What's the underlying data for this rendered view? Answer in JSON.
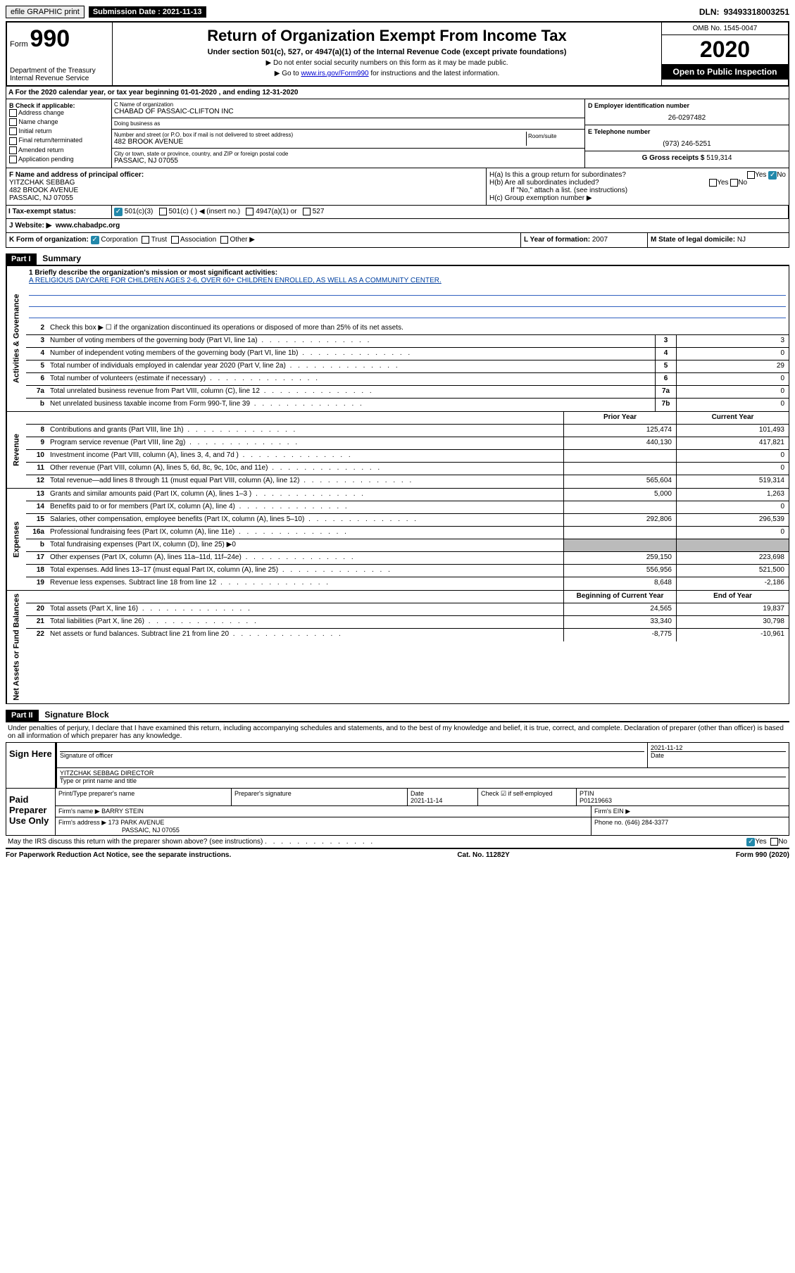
{
  "topbar": {
    "efile": "efile GRAPHIC print",
    "submission_label": "Submission Date : 2021-11-13",
    "dln_label": "DLN:",
    "dln": "93493318003251"
  },
  "header": {
    "form_label": "Form",
    "form_num": "990",
    "dept": "Department of the Treasury Internal Revenue Service",
    "title": "Return of Organization Exempt From Income Tax",
    "subtitle": "Under section 501(c), 527, or 4947(a)(1) of the Internal Revenue Code (except private foundations)",
    "line1": "▶ Do not enter social security numbers on this form as it may be made public.",
    "line2_pre": "▶ Go to ",
    "line2_link": "www.irs.gov/Form990",
    "line2_post": " for instructions and the latest information.",
    "omb": "OMB No. 1545-0047",
    "year": "2020",
    "inspection": "Open to Public Inspection"
  },
  "section_a": "A For the 2020 calendar year, or tax year beginning 01-01-2020   , and ending 12-31-2020",
  "box_b": {
    "title": "B Check if applicable:",
    "items": [
      "Address change",
      "Name change",
      "Initial return",
      "Final return/terminated",
      "Amended return",
      "Application pending"
    ]
  },
  "box_c": {
    "lbl_name": "C Name of organization",
    "name": "CHABAD OF PASSAIC-CLIFTON INC",
    "dba_lbl": "Doing business as",
    "street_lbl": "Number and street (or P.O. box if mail is not delivered to street address)",
    "street": "482 BROOK AVENUE",
    "room_lbl": "Room/suite",
    "city_lbl": "City or town, state or province, country, and ZIP or foreign postal code",
    "city": "PASSAIC, NJ  07055"
  },
  "box_d": {
    "lbl": "D Employer identification number",
    "val": "26-0297482"
  },
  "box_e": {
    "lbl": "E Telephone number",
    "val": "(973) 246-5251"
  },
  "box_g": {
    "lbl": "G Gross receipts $",
    "val": "519,314"
  },
  "box_f": {
    "lbl": "F Name and address of principal officer:",
    "name": "YITZCHAK SEBBAG",
    "addr1": "482 BROOK AVENUE",
    "addr2": "PASSAIC, NJ  07055"
  },
  "box_h": {
    "a": "H(a)  Is this a group return for subordinates?",
    "b": "H(b)  Are all subordinates included?",
    "b_note": "If \"No,\" attach a list. (see instructions)",
    "c": "H(c)  Group exemption number ▶",
    "yes": "Yes",
    "no": "No"
  },
  "row_i": {
    "lbl": "I  Tax-exempt status:",
    "opts": [
      "501(c)(3)",
      "501(c) (  ) ◀ (insert no.)",
      "4947(a)(1) or",
      "527"
    ]
  },
  "row_j": {
    "lbl": "J  Website: ▶",
    "val": "www.chabadpc.org"
  },
  "row_k": {
    "lbl": "K Form of organization:",
    "opts": [
      "Corporation",
      "Trust",
      "Association",
      "Other ▶"
    ],
    "l_lbl": "L Year of formation:",
    "l_val": "2007",
    "m_lbl": "M State of legal domicile:",
    "m_val": "NJ"
  },
  "part1": {
    "hdr": "Part I",
    "title": "Summary",
    "q1_lbl": "1  Briefly describe the organization's mission or most significant activities:",
    "q1_val": "A RELIGIOUS DAYCARE FOR CHILDREN AGES 2-6, OVER 60+ CHILDREN ENROLLED, AS WELL AS A COMMUNITY CENTER.",
    "q2": "Check this box ▶ ☐  if the organization discontinued its operations or disposed of more than 25% of its net assets.",
    "side_gov": "Activities & Governance",
    "side_rev": "Revenue",
    "side_exp": "Expenses",
    "side_net": "Net Assets or Fund Balances",
    "col_prior": "Prior Year",
    "col_current": "Current Year",
    "col_begin": "Beginning of Current Year",
    "col_end": "End of Year"
  },
  "gov_rows": [
    {
      "n": "3",
      "d": "Number of voting members of the governing body (Part VI, line 1a)",
      "box": "3",
      "v": "3"
    },
    {
      "n": "4",
      "d": "Number of independent voting members of the governing body (Part VI, line 1b)",
      "box": "4",
      "v": "0"
    },
    {
      "n": "5",
      "d": "Total number of individuals employed in calendar year 2020 (Part V, line 2a)",
      "box": "5",
      "v": "29"
    },
    {
      "n": "6",
      "d": "Total number of volunteers (estimate if necessary)",
      "box": "6",
      "v": "0"
    },
    {
      "n": "7a",
      "d": "Total unrelated business revenue from Part VIII, column (C), line 12",
      "box": "7a",
      "v": "0"
    },
    {
      "n": "b",
      "d": "Net unrelated business taxable income from Form 990-T, line 39",
      "box": "7b",
      "v": "0"
    }
  ],
  "rev_rows": [
    {
      "n": "8",
      "d": "Contributions and grants (Part VIII, line 1h)",
      "p": "125,474",
      "c": "101,493"
    },
    {
      "n": "9",
      "d": "Program service revenue (Part VIII, line 2g)",
      "p": "440,130",
      "c": "417,821"
    },
    {
      "n": "10",
      "d": "Investment income (Part VIII, column (A), lines 3, 4, and 7d )",
      "p": "",
      "c": "0"
    },
    {
      "n": "11",
      "d": "Other revenue (Part VIII, column (A), lines 5, 6d, 8c, 9c, 10c, and 11e)",
      "p": "",
      "c": "0"
    },
    {
      "n": "12",
      "d": "Total revenue—add lines 8 through 11 (must equal Part VIII, column (A), line 12)",
      "p": "565,604",
      "c": "519,314"
    }
  ],
  "exp_rows": [
    {
      "n": "13",
      "d": "Grants and similar amounts paid (Part IX, column (A), lines 1–3 )",
      "p": "5,000",
      "c": "1,263"
    },
    {
      "n": "14",
      "d": "Benefits paid to or for members (Part IX, column (A), line 4)",
      "p": "",
      "c": "0"
    },
    {
      "n": "15",
      "d": "Salaries, other compensation, employee benefits (Part IX, column (A), lines 5–10)",
      "p": "292,806",
      "c": "296,539"
    },
    {
      "n": "16a",
      "d": "Professional fundraising fees (Part IX, column (A), line 11e)",
      "p": "",
      "c": "0"
    },
    {
      "n": "b",
      "d": "Total fundraising expenses (Part IX, column (D), line 25) ▶0",
      "p": "SHADED",
      "c": "SHADED"
    },
    {
      "n": "17",
      "d": "Other expenses (Part IX, column (A), lines 11a–11d, 11f–24e)",
      "p": "259,150",
      "c": "223,698"
    },
    {
      "n": "18",
      "d": "Total expenses. Add lines 13–17 (must equal Part IX, column (A), line 25)",
      "p": "556,956",
      "c": "521,500"
    },
    {
      "n": "19",
      "d": "Revenue less expenses. Subtract line 18 from line 12",
      "p": "8,648",
      "c": "-2,186"
    }
  ],
  "net_rows": [
    {
      "n": "20",
      "d": "Total assets (Part X, line 16)",
      "p": "24,565",
      "c": "19,837"
    },
    {
      "n": "21",
      "d": "Total liabilities (Part X, line 26)",
      "p": "33,340",
      "c": "30,798"
    },
    {
      "n": "22",
      "d": "Net assets or fund balances. Subtract line 21 from line 20",
      "p": "-8,775",
      "c": "-10,961"
    }
  ],
  "part2": {
    "hdr": "Part II",
    "title": "Signature Block",
    "penalty": "Under penalties of perjury, I declare that I have examined this return, including accompanying schedules and statements, and to the best of my knowledge and belief, it is true, correct, and complete. Declaration of preparer (other than officer) is based on all information of which preparer has any knowledge."
  },
  "sign": {
    "here": "Sign Here",
    "sig_officer_lbl": "Signature of officer",
    "date_lbl": "Date",
    "date_val": "2021-11-12",
    "name_title": "YITZCHAK SEBBAG  DIRECTOR",
    "name_lbl": "Type or print name and title"
  },
  "preparer": {
    "hdr": "Paid Preparer Use Only",
    "print_lbl": "Print/Type preparer's name",
    "sig_lbl": "Preparer's signature",
    "date_lbl": "Date",
    "date_val": "2021-11-14",
    "check_lbl": "Check ☑ if self-employed",
    "ptin_lbl": "PTIN",
    "ptin_val": "P01219663",
    "firm_name_lbl": "Firm's name   ▶",
    "firm_name": "BARRY STEIN",
    "firm_ein_lbl": "Firm's EIN ▶",
    "firm_addr_lbl": "Firm's address ▶",
    "firm_addr1": "173 PARK AVENUE",
    "firm_addr2": "PASSAIC, NJ  07055",
    "phone_lbl": "Phone no.",
    "phone_val": "(646) 284-3377"
  },
  "discuss": "May the IRS discuss this return with the preparer shown above? (see instructions)",
  "footer": {
    "pra": "For Paperwork Reduction Act Notice, see the separate instructions.",
    "cat": "Cat. No. 11282Y",
    "form": "Form 990 (2020)"
  }
}
